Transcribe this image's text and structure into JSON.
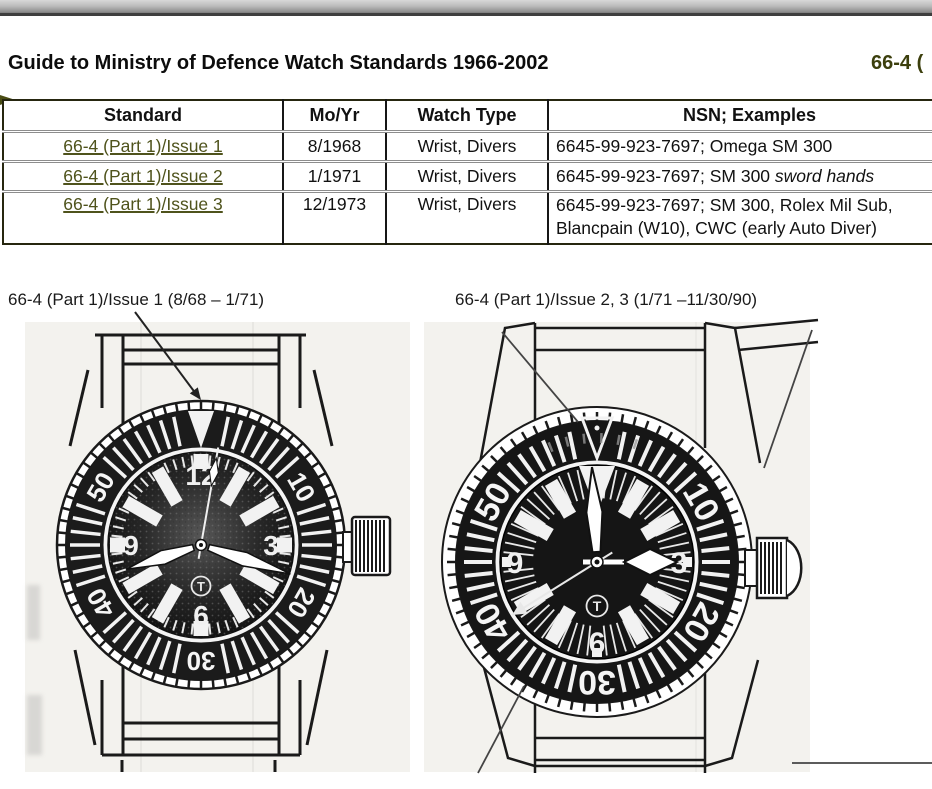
{
  "header": {
    "title": "Guide to Ministry of Defence Watch Standards 1966-2002",
    "right_fragment": "66-4 ("
  },
  "table": {
    "headers": [
      "Standard",
      "Mo/Yr",
      "Watch Type",
      "NSN; Examples"
    ],
    "rows": [
      {
        "standard": "66-4 (Part 1)/Issue 1",
        "mo_yr": "8/1968",
        "watch_type": "Wrist, Divers",
        "nsn": "6645-99-923-7697; Omega SM 300",
        "nsn_italic": "",
        "nsn_line2": ""
      },
      {
        "standard": "66-4 (Part 1)/Issue 2",
        "mo_yr": "1/1971",
        "watch_type": "Wrist, Divers",
        "nsn": "6645-99-923-7697; SM 300 ",
        "nsn_italic": "sword hands",
        "nsn_line2": ""
      },
      {
        "standard": "66-4 (Part 1)/Issue 3",
        "mo_yr": "12/1973",
        "watch_type": "Wrist, Divers",
        "nsn": "6645-99-923-7697; SM 300, Rolex Mil Sub,",
        "nsn_italic": "",
        "nsn_line2": "Blancpain (W10), CWC (early Auto Diver)"
      }
    ]
  },
  "figures": {
    "left": {
      "caption": "66-4 (Part 1)/Issue 1 (8/68 – 1/71)",
      "bezel_numerals": [
        "10",
        "20",
        "30",
        "40",
        "50"
      ],
      "dial_numerals": [
        "12",
        "3",
        "6",
        "9"
      ],
      "t_marking": "T"
    },
    "right": {
      "caption": "66-4 (Part 1)/Issue 2, 3 (1/71 –11/30/90)",
      "bezel_numerals": [
        "10",
        "20",
        "30",
        "40",
        "50"
      ],
      "dial_numerals": [
        "3",
        "6",
        "9"
      ],
      "t_marking": "T"
    }
  },
  "colors": {
    "link_olive": "#4f531c",
    "header_olive": "#3c3f0d",
    "paper": "#f3f2ee"
  }
}
